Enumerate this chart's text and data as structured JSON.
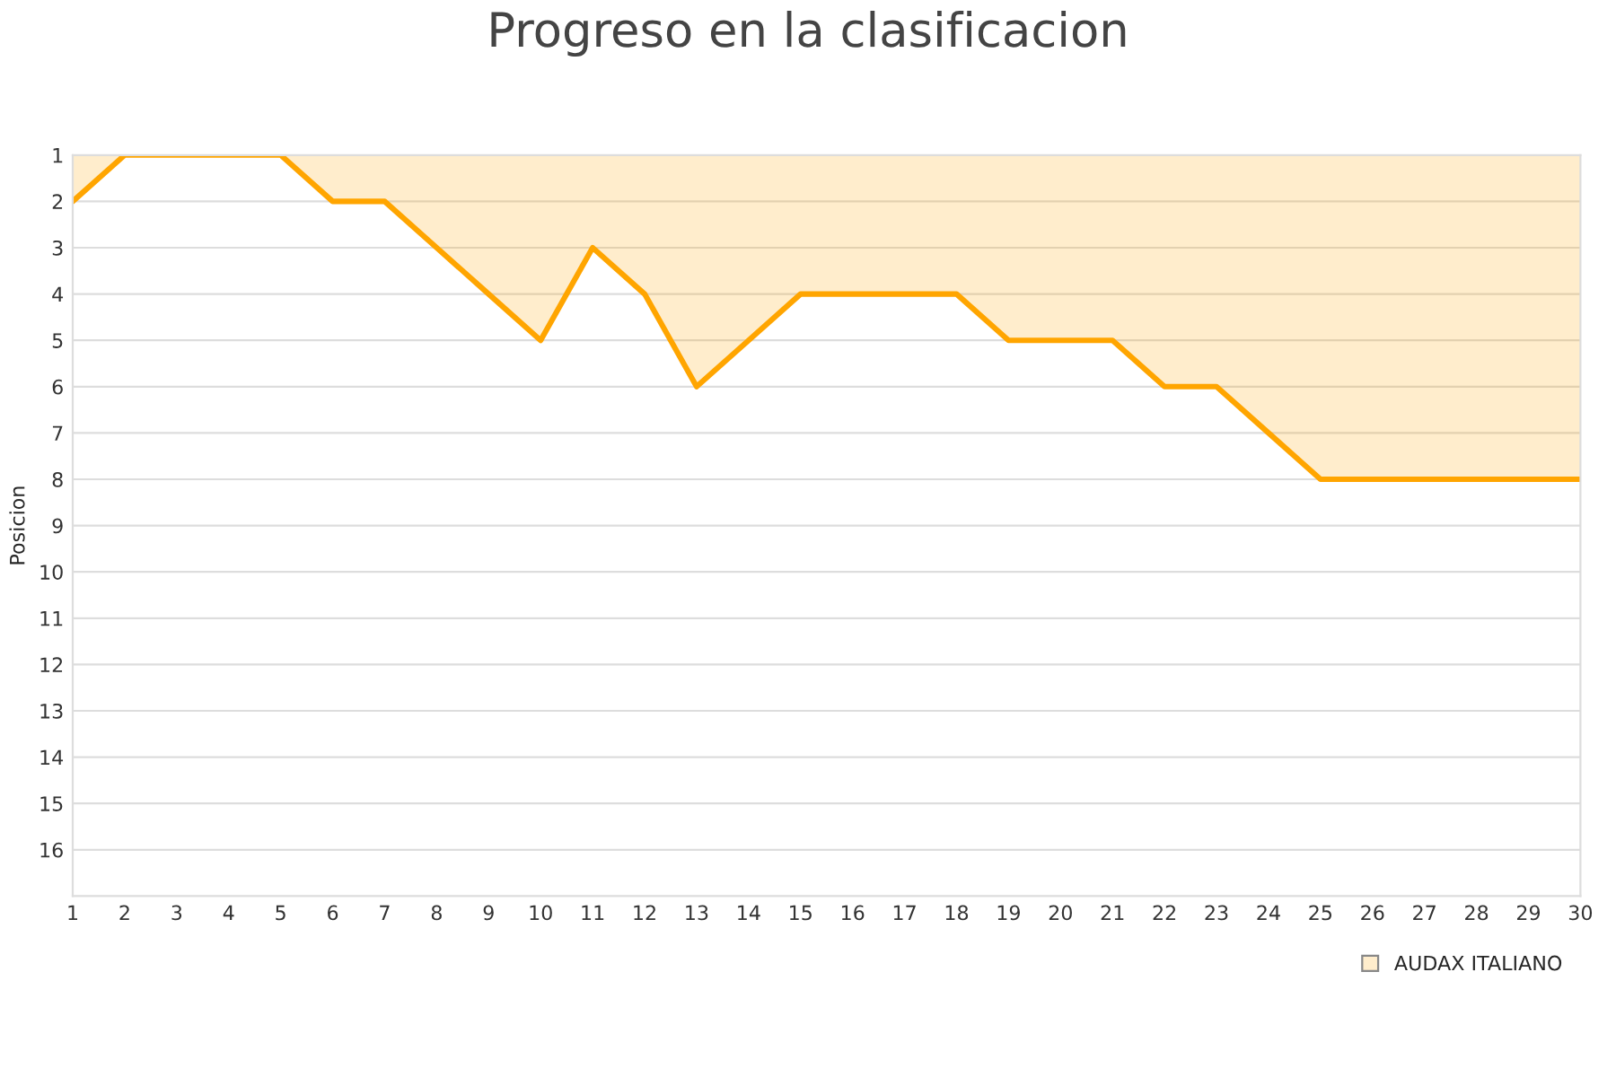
{
  "chart_data": {
    "type": "area",
    "title": "Progreso en la clasificacion",
    "ylabel": "Posicion",
    "x": [
      1,
      2,
      3,
      4,
      5,
      6,
      7,
      8,
      9,
      10,
      11,
      12,
      13,
      14,
      15,
      16,
      17,
      18,
      19,
      20,
      21,
      22,
      23,
      24,
      25,
      26,
      27,
      28,
      29,
      30
    ],
    "series": [
      {
        "name": "AUDAX ITALIANO",
        "color": "#ffa500",
        "values": [
          2,
          1,
          1,
          1,
          1,
          2,
          2,
          3,
          4,
          5,
          3,
          4,
          6,
          5,
          4,
          4,
          4,
          4,
          5,
          5,
          5,
          6,
          6,
          7,
          8,
          8,
          8,
          8,
          8,
          8
        ]
      }
    ],
    "xlim": [
      1,
      30
    ],
    "xticks": [
      1,
      2,
      3,
      4,
      5,
      6,
      7,
      8,
      9,
      10,
      11,
      12,
      13,
      14,
      15,
      16,
      17,
      18,
      19,
      20,
      21,
      22,
      23,
      24,
      25,
      26,
      27,
      28,
      29,
      30
    ],
    "ylim": [
      17,
      1
    ],
    "yticks": [
      1,
      2,
      3,
      4,
      5,
      6,
      7,
      8,
      9,
      10,
      11,
      12,
      13,
      14,
      15,
      16
    ],
    "grid": "y",
    "legend": "bottom right"
  }
}
